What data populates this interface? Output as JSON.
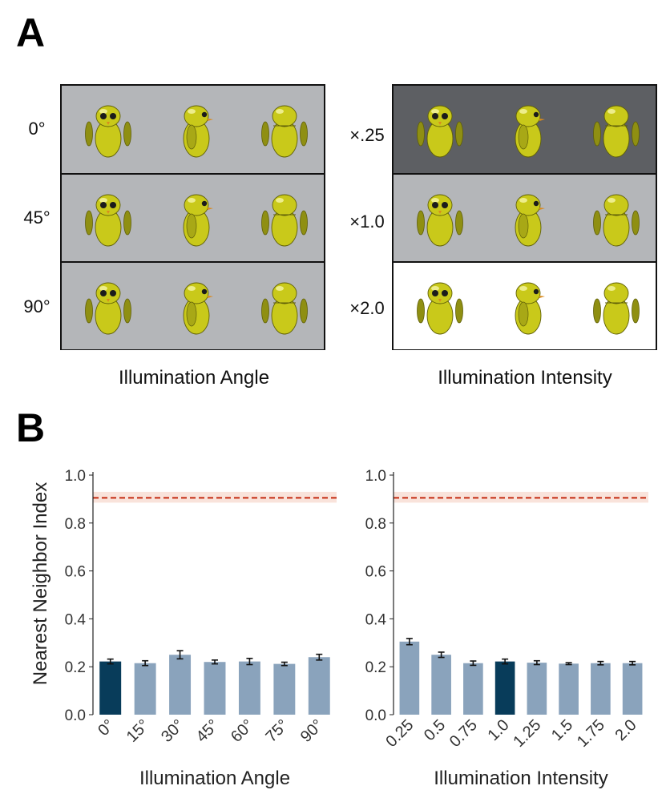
{
  "panel_a": {
    "letter": "A",
    "left_grid": {
      "caption": "Illumination Angle",
      "rows": [
        {
          "label": "0°",
          "background": "#b4b6b9"
        },
        {
          "label": "45°",
          "background": "#b4b6b9"
        },
        {
          "label": "90°",
          "background": "#b4b6b9"
        }
      ]
    },
    "right_grid": {
      "caption": "Illumination Intensity",
      "rows": [
        {
          "label": "×.25",
          "background": "#5d5f63"
        },
        {
          "label": "×1.0",
          "background": "#b4b6b9"
        },
        {
          "label": "×2.0",
          "background": "#ffffff"
        }
      ]
    },
    "figure_views": [
      "front",
      "side",
      "back"
    ],
    "figure_color": "#c9c91a"
  },
  "panel_b": {
    "letter": "B"
  },
  "chart_data": [
    {
      "type": "bar",
      "title": "",
      "xlabel": "Illumination Angle",
      "ylabel": "Nearest Neighbor Index",
      "categories": [
        "0°",
        "15°",
        "30°",
        "45°",
        "60°",
        "75°",
        "90°"
      ],
      "values": [
        0.222,
        0.215,
        0.25,
        0.22,
        0.222,
        0.212,
        0.24
      ],
      "errors": [
        0.01,
        0.01,
        0.017,
        0.008,
        0.013,
        0.007,
        0.012
      ],
      "highlight_index": 0,
      "highlight_color": "#083c5a",
      "bar_color": "#8aa3bc",
      "reference_line": 0.905,
      "reference_band": [
        0.885,
        0.93
      ],
      "reference_color": "#c42a10",
      "ylim": [
        0,
        1
      ],
      "yticks": [
        "0.0",
        "0.2",
        "0.4",
        "0.6",
        "0.8",
        "1.0"
      ]
    },
    {
      "type": "bar",
      "title": "",
      "xlabel": "Illumination Intensity",
      "ylabel": "",
      "categories": [
        "0.25",
        "0.5",
        "0.75",
        "1.0",
        "1.25",
        "1.5",
        "1.75",
        "2.0"
      ],
      "values": [
        0.305,
        0.25,
        0.215,
        0.222,
        0.217,
        0.213,
        0.215,
        0.215
      ],
      "errors": [
        0.013,
        0.011,
        0.009,
        0.01,
        0.008,
        0.004,
        0.007,
        0.007
      ],
      "highlight_index": 3,
      "highlight_color": "#083c5a",
      "bar_color": "#8aa3bc",
      "reference_line": 0.905,
      "reference_band": [
        0.885,
        0.93
      ],
      "reference_color": "#c42a10",
      "ylim": [
        0,
        1
      ],
      "yticks": [
        "0.0",
        "0.2",
        "0.4",
        "0.6",
        "0.8",
        "1.0"
      ]
    }
  ]
}
